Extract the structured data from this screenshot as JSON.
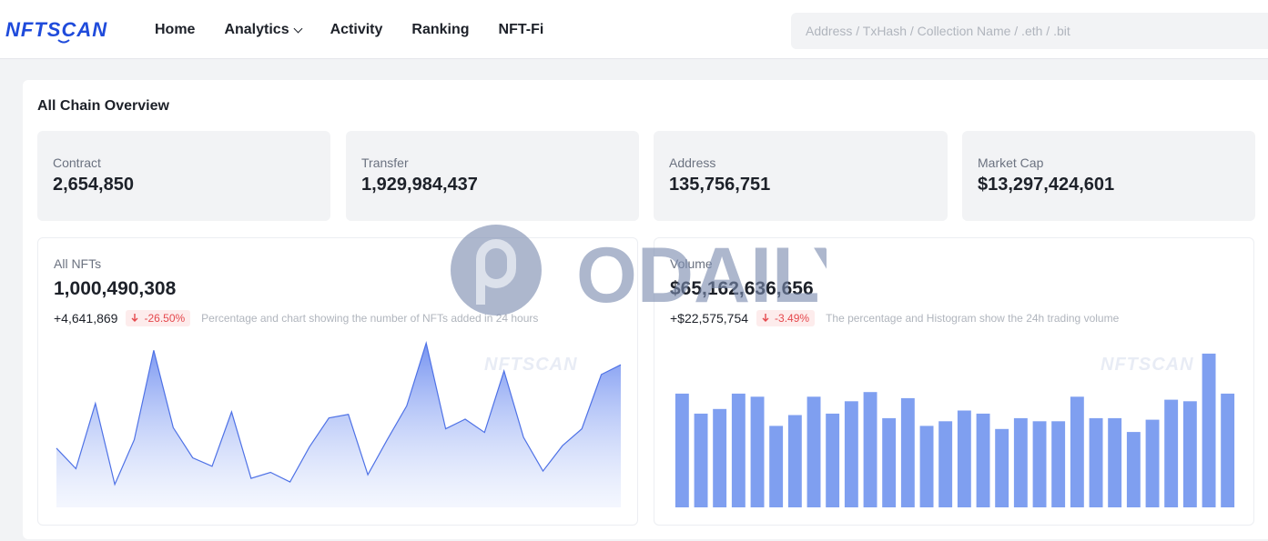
{
  "brand": {
    "name": "NFTSCAN"
  },
  "nav": {
    "items": [
      {
        "label": "Home"
      },
      {
        "label": "Analytics"
      },
      {
        "label": "Activity"
      },
      {
        "label": "Ranking"
      },
      {
        "label": "NFT-Fi"
      }
    ]
  },
  "search": {
    "placeholder": "Address / TxHash / Collection Name / .eth / .bit"
  },
  "overview": {
    "title": "All Chain Overview",
    "stats": [
      {
        "label": "Contract",
        "value": "2,654,850"
      },
      {
        "label": "Transfer",
        "value": "1,929,984,437"
      },
      {
        "label": "Address",
        "value": "135,756,751"
      },
      {
        "label": "Market Cap",
        "value": "$13,297,424,601"
      }
    ]
  },
  "nfts_card": {
    "label": "All NFTs",
    "value": "1,000,490,308",
    "change": "+4,641,869",
    "percent": "-26.50%",
    "note": "Percentage and chart showing the number of NFTs added in 24 hours",
    "watermark": "NFTSCAN"
  },
  "volume_card": {
    "label": "Volume",
    "value": "$65,162,636,656",
    "change": "+$22,575,754",
    "percent": "-3.49%",
    "note": "The percentage and Histogram show the 24h trading volume",
    "watermark": "NFTSCAN"
  },
  "overlay_watermark": "ODAILY",
  "colors": {
    "accent": "#1f4bdb",
    "series": "#7f9ff0",
    "negative": "#e5484d"
  },
  "chart_data": [
    {
      "type": "area",
      "x": [
        1,
        2,
        3,
        4,
        5,
        6,
        7,
        8,
        9,
        10,
        11,
        12,
        13,
        14,
        15,
        16,
        17,
        18,
        19,
        20,
        21,
        22,
        23,
        24,
        25,
        26,
        27,
        28,
        29,
        30
      ],
      "series": [
        {
          "values": [
            49,
            32,
            86,
            19,
            56,
            130,
            66,
            41,
            34,
            79,
            24,
            29,
            21,
            50,
            74,
            77,
            27,
            56,
            84,
            136,
            65,
            73,
            62,
            113,
            58,
            30,
            51,
            65,
            110,
            118
          ]
        }
      ],
      "ylim": [
        0,
        140
      ]
    },
    {
      "type": "bar",
      "x": [
        1,
        2,
        3,
        4,
        5,
        6,
        7,
        8,
        9,
        10,
        11,
        12,
        13,
        14,
        15,
        16,
        17,
        18,
        19,
        20,
        21,
        22,
        23,
        24,
        25,
        26,
        27,
        28,
        29,
        30
      ],
      "series": [
        {
          "values": [
            74,
            61,
            64,
            74,
            72,
            53,
            60,
            72,
            61,
            69,
            75,
            58,
            71,
            53,
            56,
            63,
            61,
            51,
            58,
            56,
            56,
            72,
            58,
            58,
            49,
            57,
            70,
            69,
            100,
            74
          ]
        }
      ],
      "ylim": [
        0,
        110
      ]
    }
  ]
}
